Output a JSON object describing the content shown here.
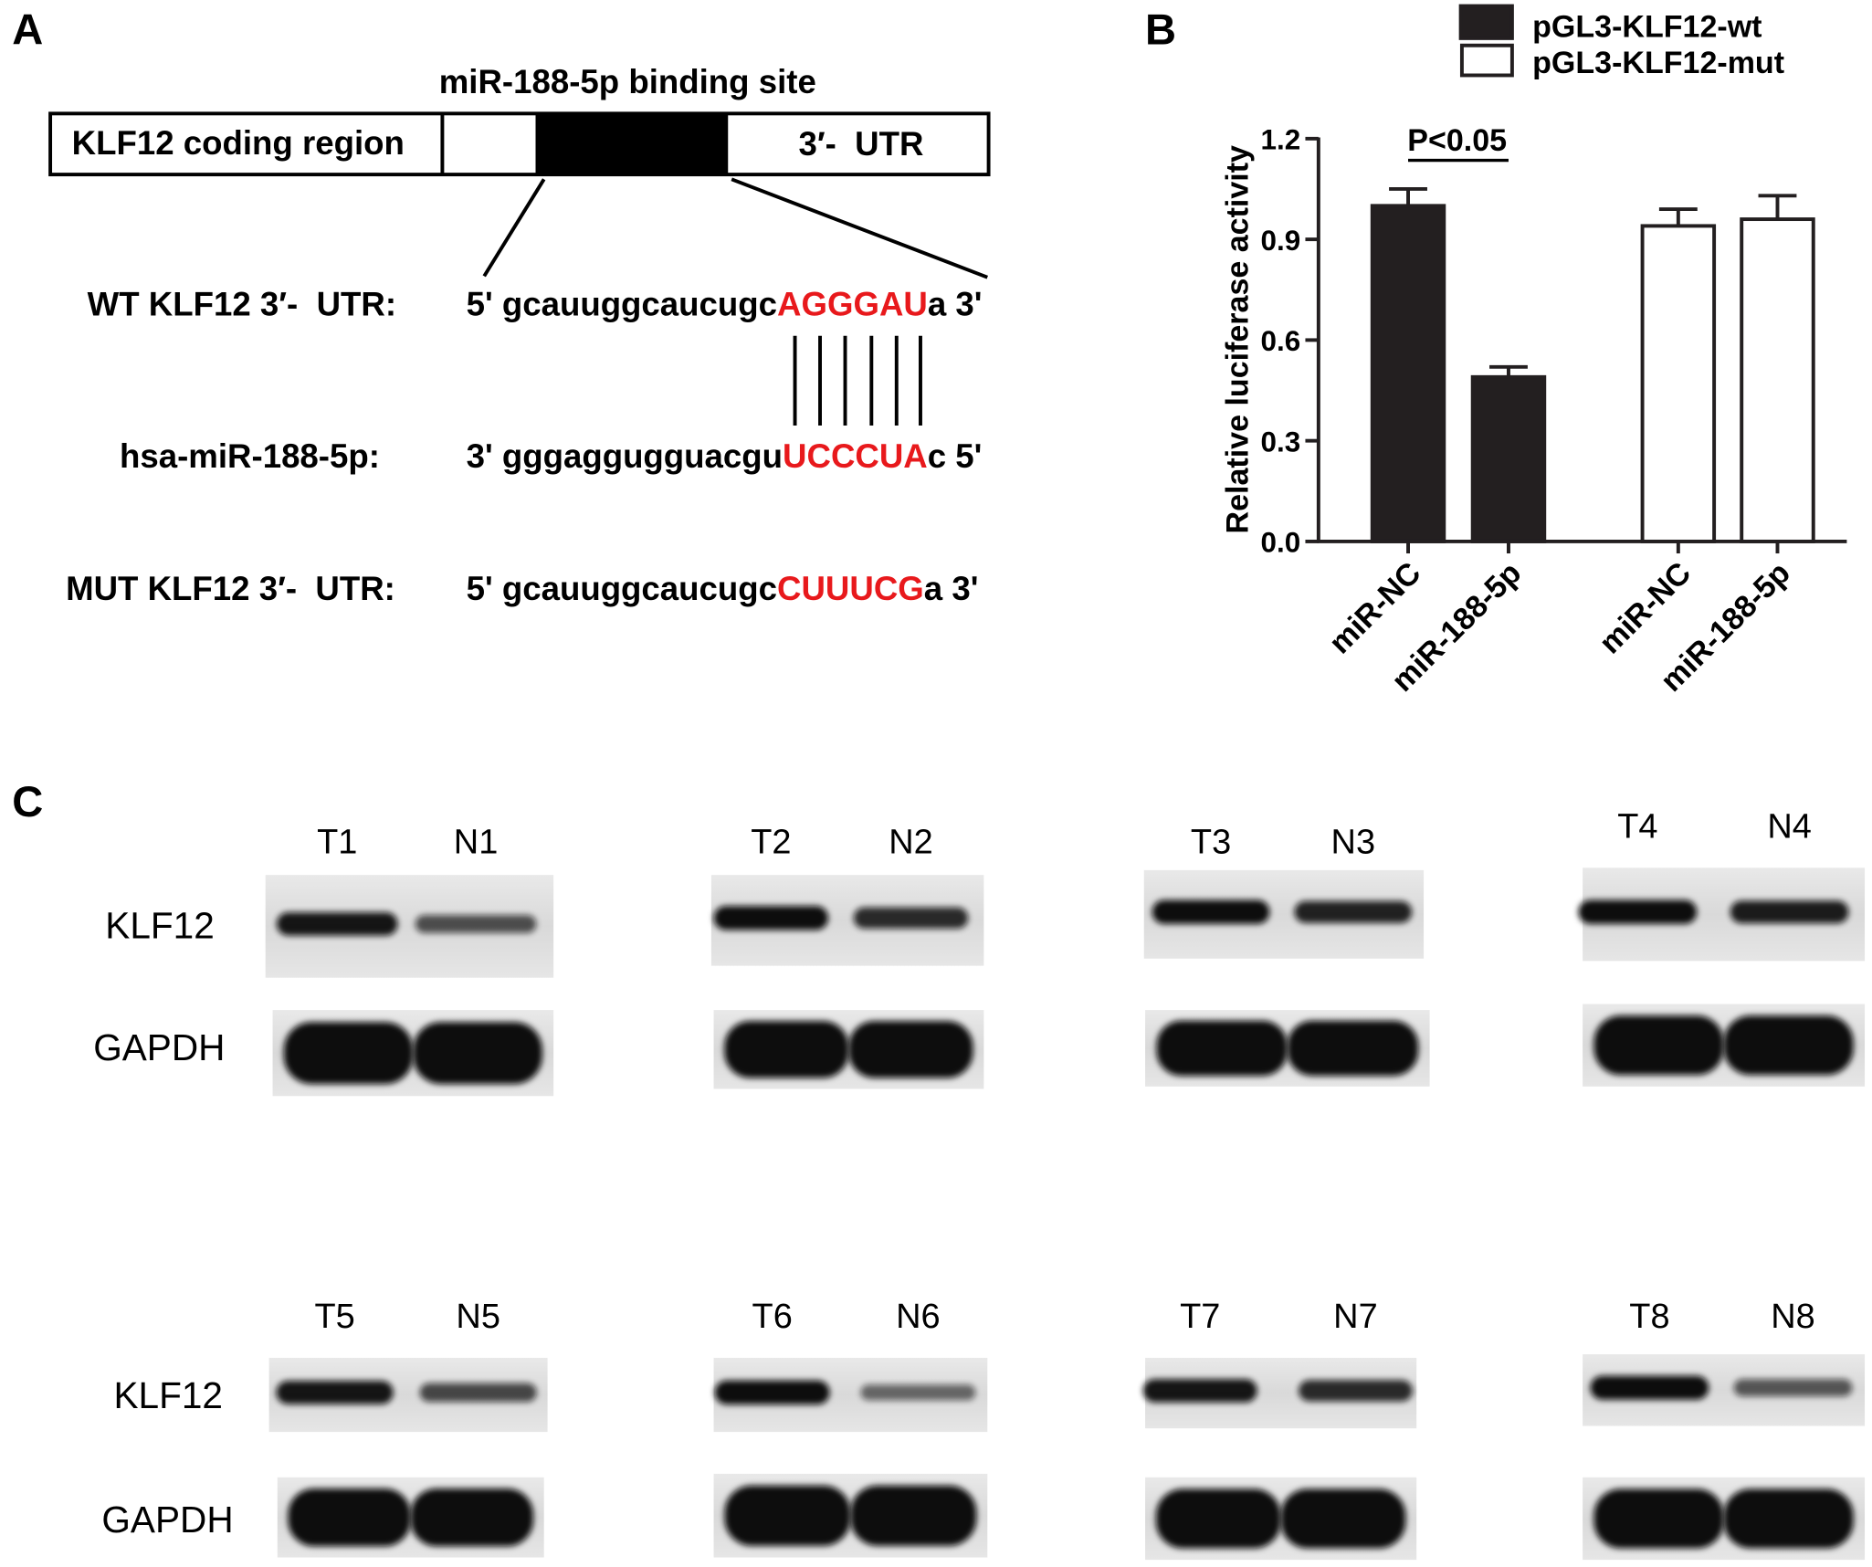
{
  "figure": {
    "panel_labels": {
      "a": "A",
      "b": "B",
      "c": "C"
    }
  },
  "panel_a": {
    "binding_site_title": "miR-188-5p binding site",
    "coding_region_label": "KLF12 coding region",
    "utr_label": "3′-  UTR",
    "highlight_color": "#e8191c",
    "sequences": [
      {
        "label": "WT KLF12 3′-  UTR:",
        "prefix": "5' gcauuggcaucugc",
        "highlight": "AGGGAU",
        "suffix": "a 3'"
      },
      {
        "label": "hsa-miR-188-5p:",
        "prefix": "3' gggaggugguacgu",
        "highlight": "UCCCUA",
        "suffix": "c 5'"
      },
      {
        "label": "MUT KLF12 3′-  UTR:",
        "prefix": "5' gcauuggcaucugc",
        "highlight": "CUUUCG",
        "suffix": "a 3'"
      }
    ]
  },
  "chart_data": {
    "type": "bar",
    "xlabel": "",
    "ylabel": "Relative luciferase activity",
    "ylim": [
      0,
      1.2
    ],
    "yticks": [
      "0.0",
      "0.3",
      "0.6",
      "0.9",
      "1.2"
    ],
    "grid": false,
    "legend_position": "top-right",
    "categories": [
      "miR-NC",
      "miR-188-5p",
      "miR-NC",
      "miR-188-5p"
    ],
    "series": [
      {
        "name": "pGL3-KLF12-wt",
        "color": "#231f20",
        "values": [
          1.0,
          0.49,
          null,
          null
        ],
        "errors": [
          0.05,
          0.03,
          null,
          null
        ]
      },
      {
        "name": "pGL3-KLF12-mut",
        "color": "#ffffff",
        "values": [
          null,
          null,
          0.94,
          0.96
        ],
        "errors": [
          null,
          null,
          0.05,
          0.07
        ]
      }
    ],
    "annotations": [
      {
        "text": "P<0.05",
        "between": [
          0,
          1
        ]
      }
    ]
  },
  "panel_c": {
    "protein_labels": [
      "KLF12",
      "GAPDH"
    ],
    "rows": [
      {
        "pairs": [
          {
            "tumor": "T1",
            "normal": "N1"
          },
          {
            "tumor": "T2",
            "normal": "N2"
          },
          {
            "tumor": "T3",
            "normal": "N3"
          },
          {
            "tumor": "T4",
            "normal": "N4"
          }
        ]
      },
      {
        "pairs": [
          {
            "tumor": "T5",
            "normal": "N5"
          },
          {
            "tumor": "T6",
            "normal": "N6"
          },
          {
            "tumor": "T7",
            "normal": "N7"
          },
          {
            "tumor": "T8",
            "normal": "N8"
          }
        ]
      }
    ]
  }
}
